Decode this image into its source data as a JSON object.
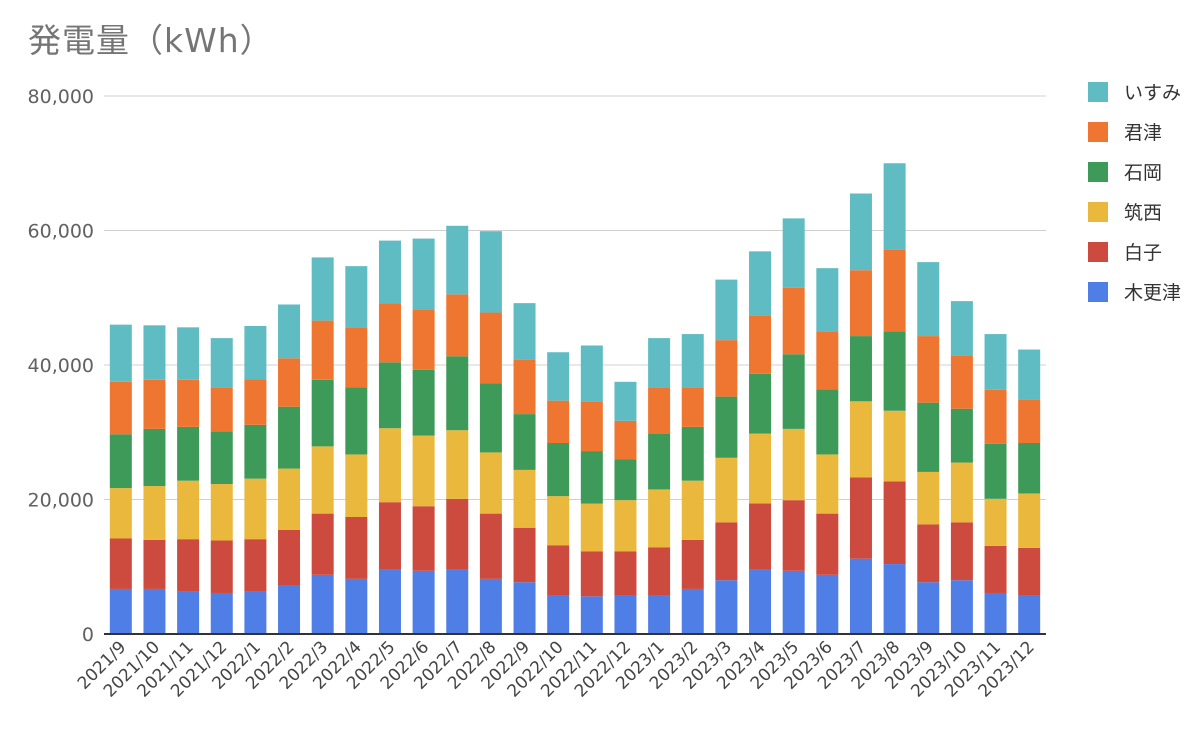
{
  "chart_data": {
    "type": "bar",
    "stacked": true,
    "title": "発電量（kWh）",
    "xlabel": "",
    "ylabel": "",
    "ylim": [
      0,
      80000
    ],
    "yticks": [
      0,
      20000,
      40000,
      60000,
      80000
    ],
    "ytick_labels": [
      "0",
      "20,000",
      "40,000",
      "60,000",
      "80,000"
    ],
    "grid": true,
    "legend_position": "right",
    "categories": [
      "2021/9",
      "2021/10",
      "2021/11",
      "2021/12",
      "2022/1",
      "2022/2",
      "2022/3",
      "2022/4",
      "2022/5",
      "2022/6",
      "2022/7",
      "2022/8",
      "2022/9",
      "2022/10",
      "2022/11",
      "2022/12",
      "2023/1",
      "2023/2",
      "2023/3",
      "2023/4",
      "2023/5",
      "2023/6",
      "2023/7",
      "2023/8",
      "2023/9",
      "2023/10",
      "2023/11",
      "2023/12"
    ],
    "series": [
      {
        "name": "木更津",
        "color": "#4f7fe6",
        "values": [
          6700,
          6700,
          6300,
          6100,
          6300,
          7200,
          8800,
          8200,
          9600,
          9400,
          9600,
          8200,
          7700,
          5800,
          5600,
          5800,
          5800,
          6700,
          8000,
          9600,
          9400,
          8800,
          11200,
          10400,
          7700,
          8000,
          6100,
          5800
        ]
      },
      {
        "name": "白子",
        "color": "#cc4a3e",
        "values": [
          7500,
          7300,
          7800,
          7800,
          7800,
          8300,
          9100,
          9200,
          10000,
          9600,
          10500,
          9700,
          8100,
          7400,
          6700,
          6500,
          7100,
          7300,
          8600,
          9800,
          10500,
          9100,
          12100,
          12300,
          8600,
          8600,
          7000,
          7000
        ]
      },
      {
        "name": "筑西",
        "color": "#e9b83c",
        "values": [
          7500,
          8000,
          8700,
          8400,
          9000,
          9100,
          10000,
          9300,
          11000,
          10500,
          10200,
          9100,
          8600,
          7300,
          7100,
          7600,
          8600,
          8800,
          9600,
          10400,
          10600,
          8800,
          11300,
          10500,
          7800,
          8900,
          7000,
          8100
        ]
      },
      {
        "name": "石岡",
        "color": "#3d9a59",
        "values": [
          8000,
          8500,
          8000,
          7800,
          8000,
          9200,
          9900,
          10000,
          9800,
          9800,
          11000,
          10300,
          8300,
          7900,
          7800,
          6100,
          8300,
          8000,
          9100,
          8900,
          11100,
          9700,
          9700,
          11800,
          10300,
          8000,
          8200,
          7500
        ]
      },
      {
        "name": "君津",
        "color": "#ee7630",
        "values": [
          7800,
          7300,
          7000,
          6600,
          6800,
          7200,
          8800,
          8900,
          8800,
          9000,
          9200,
          10500,
          8100,
          6300,
          7400,
          5700,
          6900,
          5900,
          8400,
          8700,
          9900,
          8600,
          9800,
          12200,
          9900,
          7900,
          8000,
          6500
        ]
      },
      {
        "name": "いすみ",
        "color": "#5fbcc3",
        "values": [
          8500,
          8100,
          7800,
          7300,
          7900,
          8000,
          9400,
          9100,
          9300,
          10500,
          10200,
          12100,
          8400,
          7200,
          8300,
          5800,
          7300,
          7900,
          9000,
          9500,
          10300,
          9400,
          11400,
          12800,
          11000,
          8100,
          8300,
          7400
        ]
      }
    ]
  }
}
